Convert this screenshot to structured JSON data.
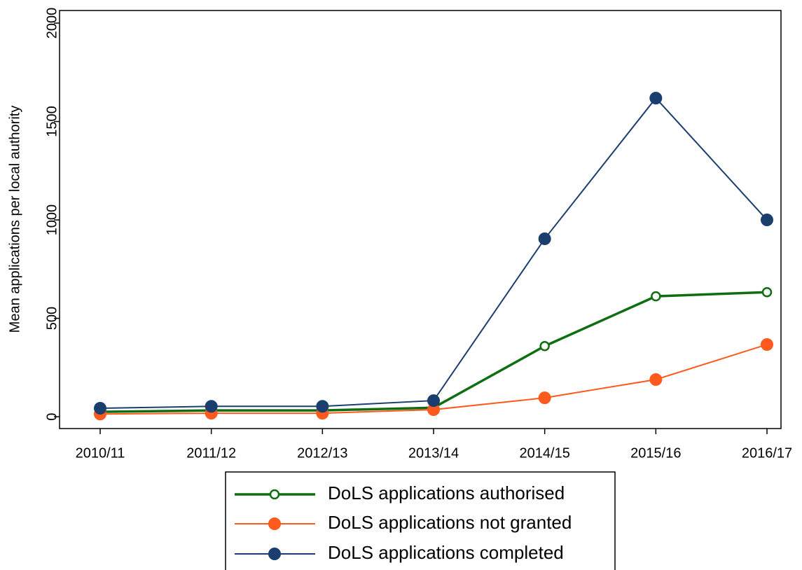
{
  "chart_data": {
    "type": "line",
    "y_label": "Mean applications per local authority",
    "categories": [
      "2010/11",
      "2011/12",
      "2012/13",
      "2013/14",
      "2014/15",
      "2015/16",
      "2016/17"
    ],
    "series": [
      {
        "name": "DoLS applications authorised",
        "color": "#0f6e12",
        "marker": "circle-open",
        "values": [
          25,
          32,
          32,
          46,
          359,
          612,
          633
        ]
      },
      {
        "name": "DoLS applications not granted",
        "color": "#ff5a1e",
        "marker": "circle",
        "values": [
          14,
          18,
          18,
          36,
          96,
          189,
          367
        ]
      },
      {
        "name": "DoLS applications completed",
        "color": "#1a3e6e",
        "marker": "circle",
        "values": [
          43,
          53,
          53,
          82,
          904,
          1619,
          1000
        ]
      }
    ],
    "ylim": [
      -60,
      2064
    ],
    "yticks": [
      0,
      500,
      1000,
      1500,
      2000
    ],
    "grid": false,
    "legend": "bottom"
  }
}
